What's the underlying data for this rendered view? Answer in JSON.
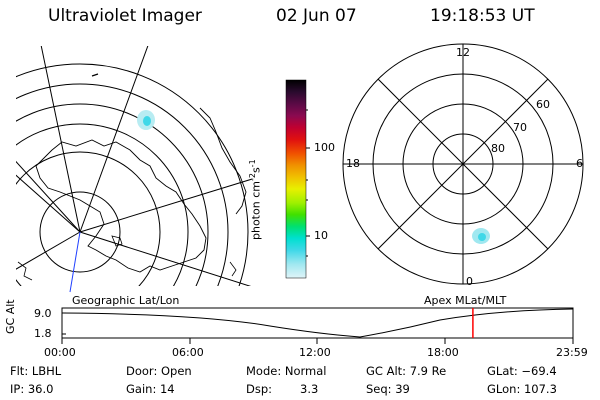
{
  "header": {
    "title": "Ultraviolet Imager",
    "date": "02 Jun 07",
    "time": "19:18:53 UT"
  },
  "colorbar": {
    "unit_main": "photon cm",
    "unit_exp1": "-2",
    "unit_s": "s",
    "unit_exp2": "-1",
    "tick_100": "100",
    "tick_10": "10",
    "colors": [
      "#000000",
      "#2a0a2e",
      "#5a0a45",
      "#8a0a50",
      "#c00030",
      "#e01010",
      "#f05000",
      "#f09000",
      "#f0c000",
      "#e8f000",
      "#a0f000",
      "#40e000",
      "#00e070",
      "#00e0d0",
      "#40d8e8",
      "#a0e8f0",
      "#e0f4f8"
    ]
  },
  "polar_plot": {
    "labels": {
      "top": "12",
      "right": "6",
      "left": "18",
      "bottom": "0"
    },
    "ring_labels": [
      "60",
      "70",
      "80"
    ]
  },
  "map_panel": {
    "left_label": "Geographic Lat/Lon",
    "right_label": "Apex MLat/MLT"
  },
  "timeline": {
    "ylabel": "GC Alt",
    "y_ticks": [
      "9.0",
      "1.8"
    ],
    "x_ticks": [
      "00:00",
      "06:00",
      "12:00",
      "18:00",
      "23:59"
    ],
    "current_fraction": 0.8042
  },
  "info": {
    "flt": "Flt: LBHL",
    "door": "Door: Open",
    "mode": "Mode: Normal",
    "gcalt": "GC Alt: 7.9 Re",
    "glat": "GLat: −69.4",
    "ip": "IP: 36.0",
    "gain": "Gain: 14",
    "dsp_label": "Dsp:",
    "dsp_value": "3.3",
    "seq": "Seq: 39",
    "glon": "GLon: 107.3"
  }
}
